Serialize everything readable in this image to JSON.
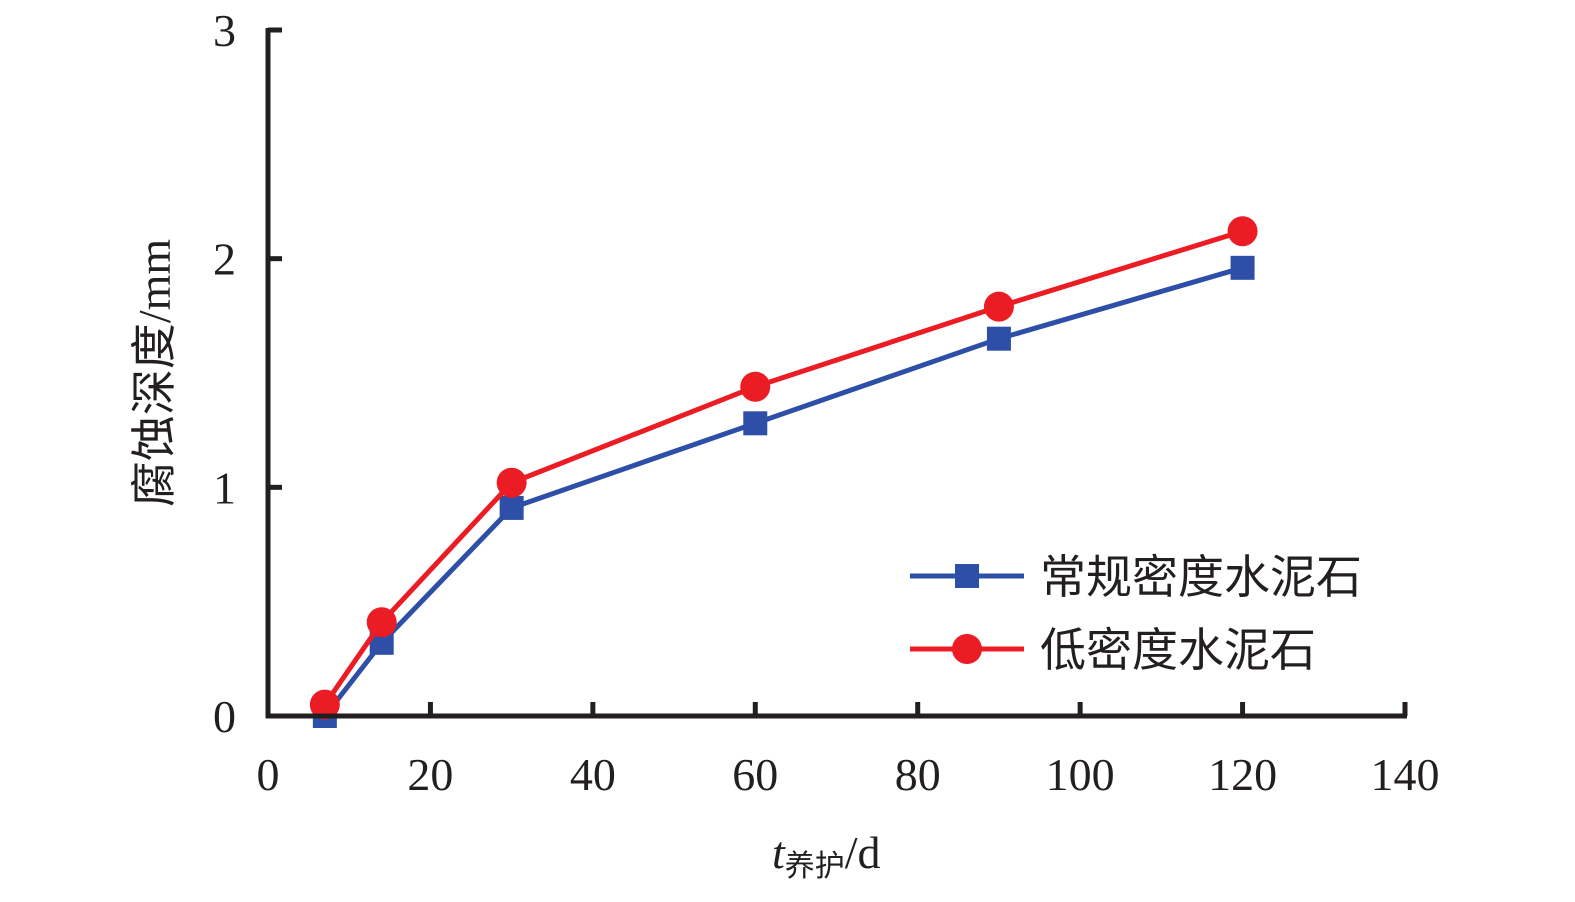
{
  "chart_data": {
    "type": "line",
    "title": "",
    "xlabel": "t",
    "xlabel_sub": "养护",
    "xlabel_unit": "/d",
    "ylabel": "腐蚀深度/mm",
    "xlim": [
      0,
      140
    ],
    "ylim": [
      0,
      3
    ],
    "xticks": [
      0,
      20,
      40,
      60,
      80,
      100,
      120,
      140
    ],
    "yticks": [
      0,
      1,
      2,
      3
    ],
    "grid": false,
    "legend_position": "bottom-right",
    "x": [
      7,
      14,
      30,
      60,
      90,
      120
    ],
    "series": [
      {
        "name": "常规密度水泥石",
        "color": "#2e4fa8",
        "marker": "square",
        "values": [
          0.0,
          0.32,
          0.91,
          1.28,
          1.65,
          1.96
        ]
      },
      {
        "name": "低密度水泥石",
        "color": "#ec1c24",
        "marker": "circle",
        "values": [
          0.05,
          0.41,
          1.02,
          1.44,
          1.79,
          2.12
        ]
      }
    ]
  }
}
